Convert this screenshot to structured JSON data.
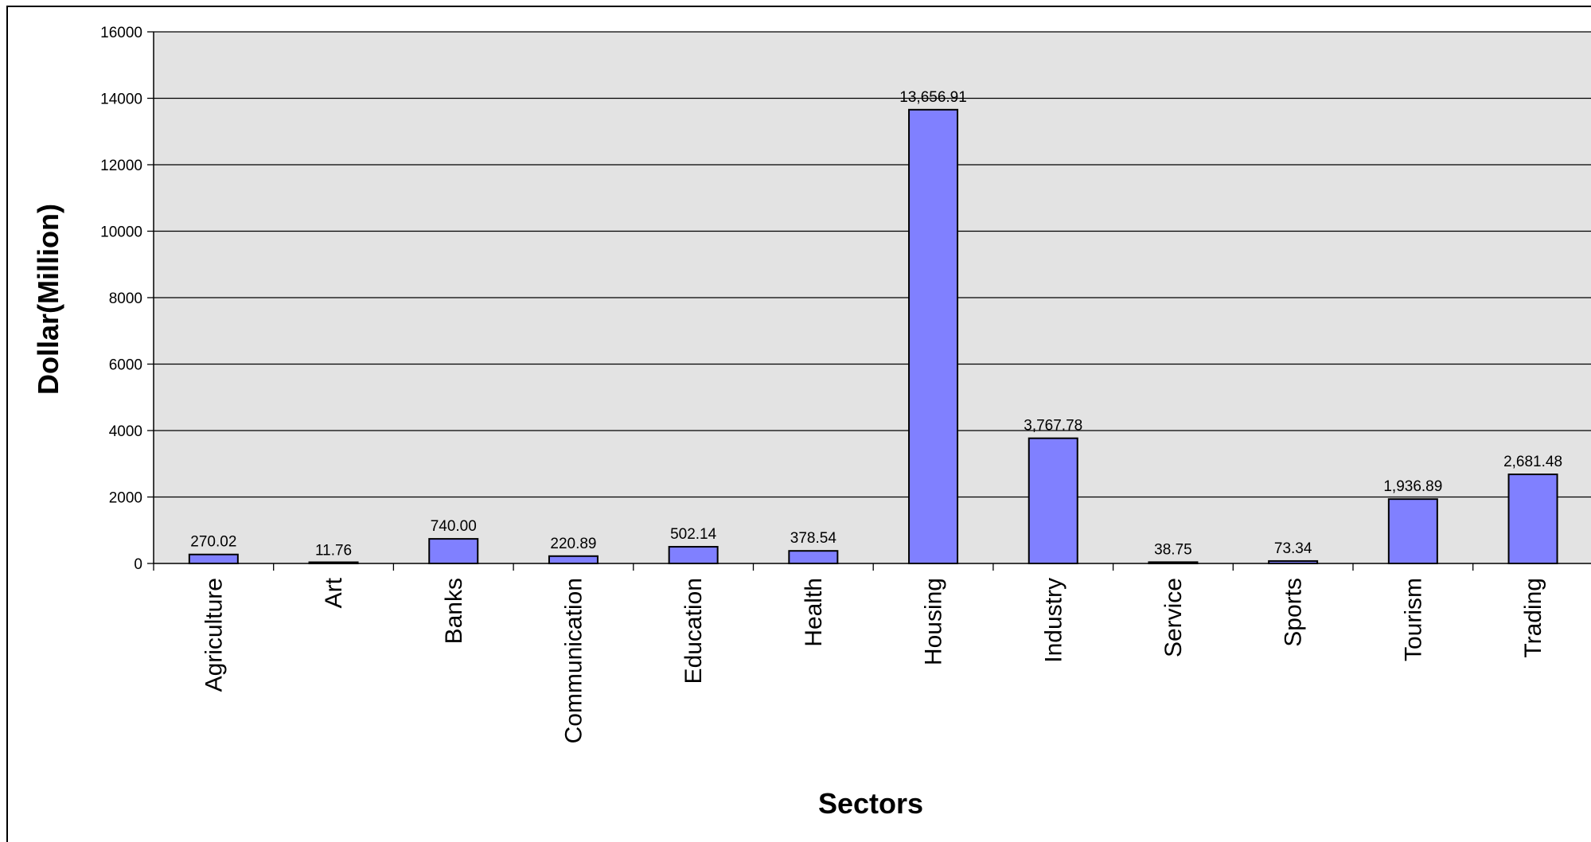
{
  "chart_data": {
    "type": "bar",
    "title": "",
    "xlabel": "Sectors",
    "ylabel": "Dollar(Million)",
    "categories": [
      "Agriculture",
      "Art",
      "Banks",
      "Communication",
      "Education",
      "Health",
      "Housing",
      "Industry",
      "Service",
      "Sports",
      "Tourism",
      "Trading"
    ],
    "values": [
      270.02,
      11.76,
      740.0,
      220.89,
      502.14,
      378.54,
      13656.91,
      3767.78,
      38.75,
      73.34,
      1936.89,
      2681.48
    ],
    "value_labels": [
      "270.02",
      "11.76",
      "740.00",
      "220.89",
      "502.14",
      "378.54",
      "13,656.91",
      "3,767.78",
      "38.75",
      "73.34",
      "1,936.89",
      "2,681.48"
    ],
    "ylim": [
      0,
      16000
    ],
    "yticks": [
      0,
      2000,
      4000,
      6000,
      8000,
      10000,
      12000,
      14000,
      16000
    ],
    "ytick_labels": [
      "0",
      "2000",
      "4000",
      "6000",
      "8000",
      "10000",
      "12000",
      "14000",
      "16000"
    ],
    "grid": true,
    "legend": "none",
    "colors": {
      "bar_fill": "#8080ff",
      "bar_stroke": "#000000",
      "plot_background": "#e3e3e3",
      "gridline": "#000000"
    }
  }
}
